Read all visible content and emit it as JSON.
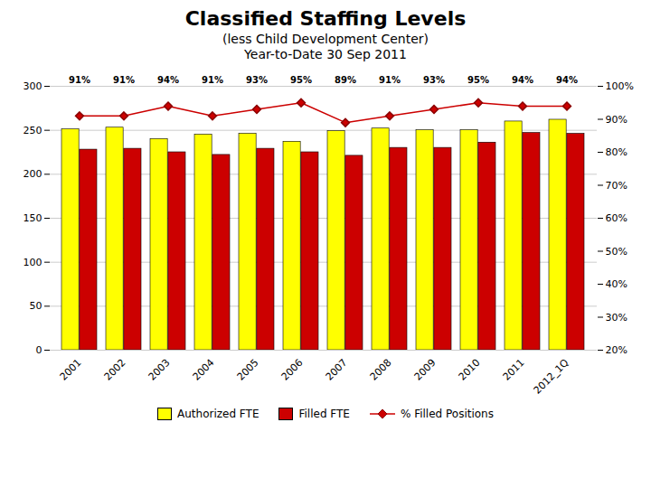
{
  "chart_data": {
    "type": "bar",
    "title": "Classified Staffing Levels",
    "subtitle": [
      "(less Child Development Center)",
      "Year-to-Date 30 Sep 2011"
    ],
    "categories": [
      "2001",
      "2002",
      "2003",
      "2004",
      "2005",
      "2006",
      "2007",
      "2008",
      "2009",
      "2010",
      "2011",
      "2012_1Q"
    ],
    "series": [
      {
        "name": "Authorized FTE",
        "type": "bar",
        "color": "#FFFF00",
        "values": [
          251,
          253,
          240,
          245,
          246,
          237,
          249,
          252,
          250,
          250,
          260,
          262
        ]
      },
      {
        "name": "Filled FTE",
        "type": "bar",
        "color": "#CC0000",
        "values": [
          228,
          229,
          225,
          222,
          229,
          225,
          221,
          230,
          230,
          236,
          247,
          246
        ]
      },
      {
        "name": "% Filled Positions",
        "type": "line",
        "axis": "y2",
        "color": "#CC0000",
        "marker": "diamond",
        "line_style": "solid",
        "data_labels": true,
        "values": [
          0.91,
          0.91,
          0.94,
          0.91,
          0.93,
          0.95,
          0.89,
          0.91,
          0.93,
          0.95,
          0.94,
          0.94
        ],
        "value_labels": [
          "91%",
          "91%",
          "94%",
          "91%",
          "93%",
          "95%",
          "89%",
          "91%",
          "93%",
          "95%",
          "94%",
          "94%"
        ]
      }
    ],
    "ylim": [
      0,
      300
    ],
    "yticks": [
      0,
      50,
      100,
      150,
      200,
      250,
      300
    ],
    "y2lim": [
      0.2,
      1.0
    ],
    "y2ticks": [
      {
        "value": 0.2,
        "label": "20%"
      },
      {
        "value": 0.3,
        "label": "30%"
      },
      {
        "value": 0.4,
        "label": "40%"
      },
      {
        "value": 0.5,
        "label": "50%"
      },
      {
        "value": 0.6,
        "label": "60%"
      },
      {
        "value": 0.7,
        "label": "70%"
      },
      {
        "value": 0.8,
        "label": "80%"
      },
      {
        "value": 0.9,
        "label": "90%"
      },
      {
        "value": 1.0,
        "label": "100%"
      }
    ],
    "grid": true,
    "legend": "bottom"
  }
}
